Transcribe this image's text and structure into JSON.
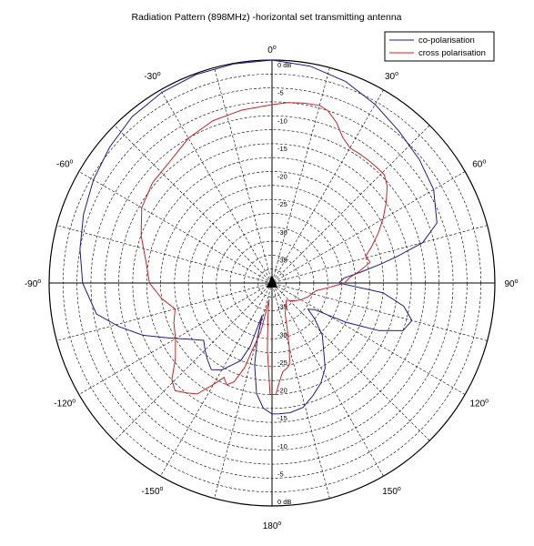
{
  "chart_data": {
    "type": "polar",
    "title": "Radiation Pattern (898MHz) -horizontal set transmitting antenna",
    "angle_labels": [
      {
        "angle": 0,
        "text": "0",
        "sup": "o"
      },
      {
        "angle": 30,
        "text": "30",
        "sup": "o"
      },
      {
        "angle": 60,
        "text": "60",
        "sup": "o"
      },
      {
        "angle": 90,
        "text": "90",
        "sup": "o"
      },
      {
        "angle": 120,
        "text": "120",
        "sup": "o"
      },
      {
        "angle": 150,
        "text": "150",
        "sup": "o"
      },
      {
        "angle": 180,
        "text": "180",
        "sup": "o"
      },
      {
        "angle": -150,
        "text": "-150",
        "sup": "o"
      },
      {
        "angle": -120,
        "text": "-120",
        "sup": "o"
      },
      {
        "angle": -90,
        "text": "-90",
        "sup": "o"
      },
      {
        "angle": -60,
        "text": "-60",
        "sup": "o"
      },
      {
        "angle": -30,
        "text": "-30",
        "sup": "o"
      }
    ],
    "radial_unit": "dB",
    "radial_range": [
      -40,
      0
    ],
    "radial_labels": [
      "0 dB",
      "-5",
      "-10",
      "-15",
      "-20",
      "-25",
      "-30",
      "-35"
    ],
    "radial_labels_bottom": [
      "-35",
      "-30",
      "-25",
      "-20",
      "-15",
      "-10",
      "-5",
      "0 dB"
    ],
    "angular_grid_step": 15,
    "radial_grid_step": 2.5,
    "legend_position": "top-right",
    "series": [
      {
        "name": "co-polarisation",
        "color": "#1c1c8c",
        "points": [
          [
            0,
            0
          ],
          [
            10,
            -0.5
          ],
          [
            20,
            -1.5
          ],
          [
            30,
            -3
          ],
          [
            40,
            -4.5
          ],
          [
            50,
            -5.5
          ],
          [
            60,
            -6.5
          ],
          [
            70,
            -8.5
          ],
          [
            75,
            -12
          ],
          [
            78,
            -17
          ],
          [
            80,
            -20
          ],
          [
            83,
            -24
          ],
          [
            86,
            -27
          ],
          [
            90,
            -28
          ],
          [
            95,
            -20
          ],
          [
            100,
            -16
          ],
          [
            105,
            -14
          ],
          [
            110,
            -15
          ],
          [
            114,
            -19
          ],
          [
            118,
            -25
          ],
          [
            122,
            -31
          ],
          [
            126,
            -32
          ],
          [
            130,
            -30
          ],
          [
            136,
            -27
          ],
          [
            142,
            -25
          ],
          [
            148,
            -22
          ],
          [
            154,
            -20
          ],
          [
            160,
            -18.5
          ],
          [
            166,
            -17
          ],
          [
            172,
            -16.5
          ],
          [
            177,
            -16.5
          ],
          [
            180,
            -16.5
          ],
          [
            184,
            -17.5
          ],
          [
            188,
            -20
          ],
          [
            192,
            -25
          ],
          [
            195,
            -30
          ],
          [
            197,
            -34
          ],
          [
            199,
            -28
          ],
          [
            202,
            -25
          ],
          [
            205,
            -24
          ],
          [
            210,
            -22
          ],
          [
            215,
            -21
          ],
          [
            220,
            -22
          ],
          [
            225,
            -23
          ],
          [
            230,
            -24
          ],
          [
            236,
            -22
          ],
          [
            242,
            -19
          ],
          [
            248,
            -15
          ],
          [
            254,
            -11.5
          ],
          [
            260,
            -8
          ],
          [
            270,
            -6
          ],
          [
            280,
            -5
          ],
          [
            290,
            -4
          ],
          [
            300,
            -3
          ],
          [
            310,
            -2
          ],
          [
            320,
            -1
          ],
          [
            330,
            -0.5
          ],
          [
            340,
            -0.2
          ],
          [
            350,
            -0.1
          ],
          [
            360,
            0
          ]
        ]
      },
      {
        "name": "cross polarisation",
        "color": "#cc2222",
        "points": [
          [
            0,
            -8
          ],
          [
            5,
            -7.5
          ],
          [
            10,
            -7.2
          ],
          [
            15,
            -7
          ],
          [
            18,
            -7.5
          ],
          [
            22,
            -9
          ],
          [
            26,
            -11
          ],
          [
            30,
            -12
          ],
          [
            34,
            -12
          ],
          [
            38,
            -12
          ],
          [
            42,
            -12
          ],
          [
            46,
            -12
          ],
          [
            50,
            -13
          ],
          [
            55,
            -15
          ],
          [
            60,
            -17
          ],
          [
            65,
            -19
          ],
          [
            70,
            -21
          ],
          [
            74,
            -22.5
          ],
          [
            78,
            -22
          ],
          [
            82,
            -24
          ],
          [
            86,
            -26
          ],
          [
            90,
            -27
          ],
          [
            95,
            -30
          ],
          [
            100,
            -32
          ],
          [
            110,
            -33
          ],
          [
            120,
            -34
          ],
          [
            130,
            -35
          ],
          [
            140,
            -36
          ],
          [
            150,
            -35
          ],
          [
            157,
            -34
          ],
          [
            162,
            -31
          ],
          [
            165,
            -28
          ],
          [
            167,
            -26
          ],
          [
            168,
            -25
          ],
          [
            170,
            -24.5
          ],
          [
            173,
            -24
          ],
          [
            176,
            -22
          ],
          [
            178,
            -20
          ],
          [
            181,
            -20
          ],
          [
            184,
            -28
          ],
          [
            187,
            -34
          ],
          [
            190,
            -37
          ],
          [
            193,
            -31
          ],
          [
            196,
            -28
          ],
          [
            198,
            -24
          ],
          [
            201,
            -21
          ],
          [
            204,
            -20
          ],
          [
            207,
            -21
          ],
          [
            210,
            -19
          ],
          [
            214,
            -16
          ],
          [
            218,
            -15
          ],
          [
            222,
            -14
          ],
          [
            226,
            -15
          ],
          [
            232,
            -18
          ],
          [
            240,
            -20
          ],
          [
            248,
            -21
          ],
          [
            255,
            -22
          ],
          [
            262,
            -20
          ],
          [
            270,
            -18
          ],
          [
            280,
            -17
          ],
          [
            290,
            -15
          ],
          [
            300,
            -13
          ],
          [
            310,
            -12
          ],
          [
            320,
            -11.5
          ],
          [
            330,
            -10
          ],
          [
            340,
            -9
          ],
          [
            350,
            -8.5
          ],
          [
            360,
            -8
          ]
        ]
      }
    ]
  }
}
